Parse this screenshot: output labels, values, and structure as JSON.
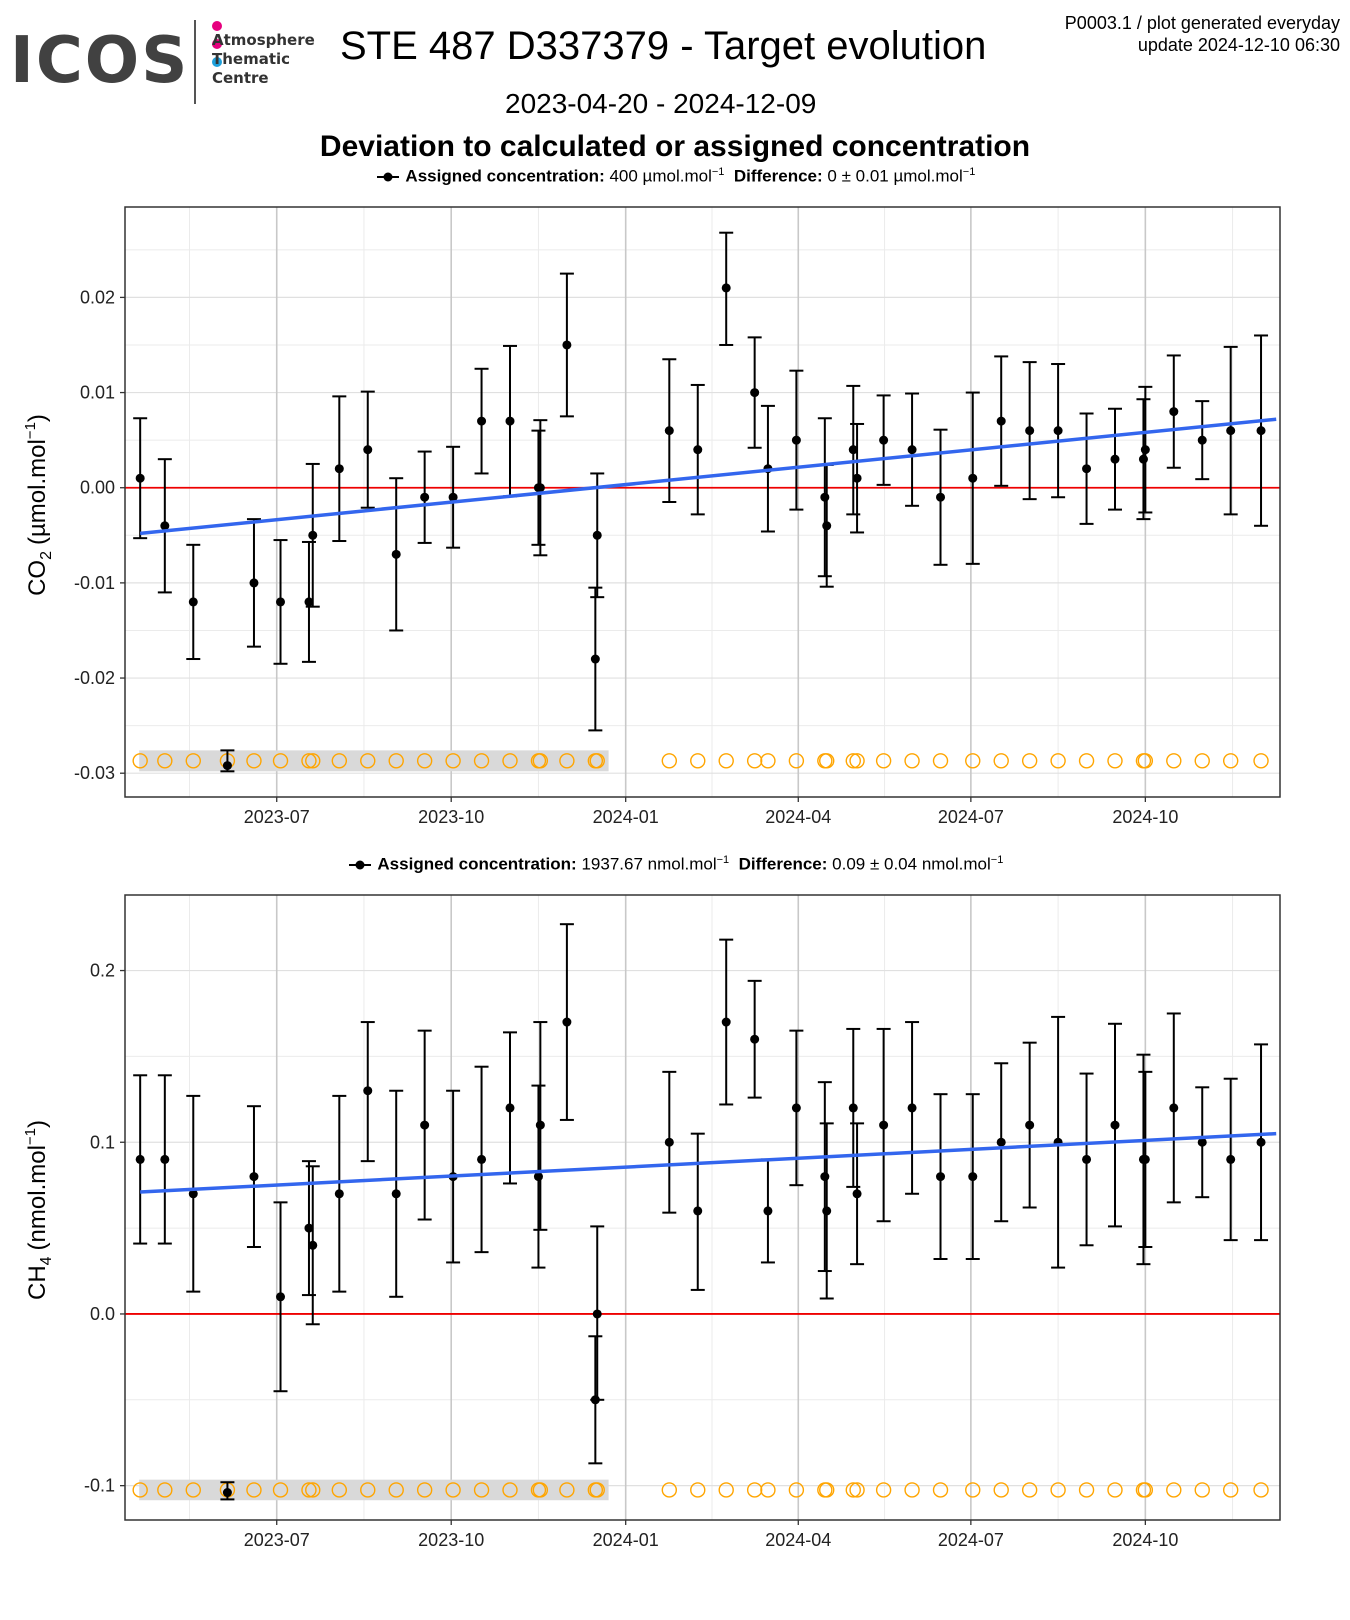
{
  "logo": {
    "wordmark": "ICOS",
    "text_lines": [
      "Atmosphere",
      "Thematic",
      "Centre"
    ],
    "dot_colors": [
      "#e6007e",
      "#e6007e",
      "#1ea0db"
    ]
  },
  "header": {
    "title": "STE 487 D337379 - Target evolution",
    "date_range": "2023-04-20 - 2024-12-09",
    "subtitle": "Deviation to calculated or assigned concentration",
    "meta_line1": "P0003.1 / plot generated everyday",
    "meta_line2": "update  2024-12-10 06:30"
  },
  "colors": {
    "points": "#000000",
    "trend": "#3366ee",
    "zero_line": "#ee0000",
    "markers": "#ffa500",
    "marker_band": "#d9d9d9"
  },
  "chart_data": [
    {
      "type": "scatter",
      "ylabel_main": "CO",
      "ylabel_sub": "2",
      "ylabel_unit": "(µmol.mol",
      "ylabel_sup": "−1",
      "ylabel_close": ")",
      "legend": {
        "label1": "Assigned concentration:",
        "value1": "400 µmol.mol",
        "sup1": "−1",
        "label2": "Difference:",
        "value2": "0 ± 0.01 µmol.mol",
        "sup2": "−1"
      },
      "ylim": [
        -0.0325,
        0.0295
      ],
      "yticks": [
        0.02,
        0.01,
        0.0,
        -0.01,
        -0.02,
        -0.03
      ],
      "ytick_labels": [
        "0.02",
        "0.01",
        "0.00",
        "-0.01",
        "-0.02",
        "-0.03"
      ],
      "xlim": [
        "2023-04-20",
        "2024-12-09"
      ],
      "xticks": [
        "2023-07-01",
        "2023-10-01",
        "2024-01-01",
        "2024-04-01",
        "2024-07-01",
        "2024-10-01"
      ],
      "xtick_labels": [
        "2023-07",
        "2023-10",
        "2024-01",
        "2024-04",
        "2024-07",
        "2024-10"
      ],
      "trend": {
        "x": [
          "2023-04-20",
          "2024-12-09"
        ],
        "y": [
          -0.0048,
          0.0072
        ]
      },
      "marker_y": -0.0287,
      "marker_band": [
        -0.0298,
        -0.0276
      ],
      "points": [
        {
          "x": "2023-04-20",
          "y": 0.001,
          "lo": -0.0053,
          "hi": 0.0073
        },
        {
          "x": "2023-05-03",
          "y": -0.004,
          "lo": -0.011,
          "hi": 0.003
        },
        {
          "x": "2023-05-18",
          "y": -0.012,
          "lo": -0.018,
          "hi": -0.006
        },
        {
          "x": "2023-06-05",
          "y": -0.0292,
          "lo": -0.0298,
          "hi": -0.0276
        },
        {
          "x": "2023-06-19",
          "y": -0.01,
          "lo": -0.0167,
          "hi": -0.0033
        },
        {
          "x": "2023-07-03",
          "y": -0.012,
          "lo": -0.0185,
          "hi": -0.0055
        },
        {
          "x": "2023-07-18",
          "y": -0.012,
          "lo": -0.0183,
          "hi": -0.0057
        },
        {
          "x": "2023-07-20",
          "y": -0.005,
          "lo": -0.0125,
          "hi": 0.0025
        },
        {
          "x": "2023-08-03",
          "y": 0.002,
          "lo": -0.0056,
          "hi": 0.0096
        },
        {
          "x": "2023-08-18",
          "y": 0.004,
          "lo": -0.0021,
          "hi": 0.0101
        },
        {
          "x": "2023-09-02",
          "y": -0.007,
          "lo": -0.015,
          "hi": 0.001
        },
        {
          "x": "2023-09-17",
          "y": -0.001,
          "lo": -0.0058,
          "hi": 0.0038
        },
        {
          "x": "2023-10-02",
          "y": -0.001,
          "lo": -0.0063,
          "hi": 0.0043
        },
        {
          "x": "2023-10-17",
          "y": 0.007,
          "lo": 0.0015,
          "hi": 0.0125
        },
        {
          "x": "2023-11-01",
          "y": 0.007,
          "lo": -0.0009,
          "hi": 0.0149
        },
        {
          "x": "2023-11-16",
          "y": 0.0,
          "lo": -0.006,
          "hi": 0.006
        },
        {
          "x": "2023-11-17",
          "y": 0.0,
          "lo": -0.0071,
          "hi": 0.0071
        },
        {
          "x": "2023-12-01",
          "y": 0.015,
          "lo": 0.0075,
          "hi": 0.0225
        },
        {
          "x": "2023-12-16",
          "y": -0.018,
          "lo": -0.0255,
          "hi": -0.0105
        },
        {
          "x": "2023-12-17",
          "y": -0.005,
          "lo": -0.0115,
          "hi": 0.0015
        },
        {
          "x": "2024-01-24",
          "y": 0.006,
          "lo": -0.0015,
          "hi": 0.0135
        },
        {
          "x": "2024-02-08",
          "y": 0.004,
          "lo": -0.0028,
          "hi": 0.0108
        },
        {
          "x": "2024-02-23",
          "y": 0.021,
          "lo": 0.015,
          "hi": 0.0268
        },
        {
          "x": "2024-03-09",
          "y": 0.01,
          "lo": 0.0042,
          "hi": 0.0158
        },
        {
          "x": "2024-03-16",
          "y": 0.002,
          "lo": -0.0046,
          "hi": 0.0086
        },
        {
          "x": "2024-03-31",
          "y": 0.005,
          "lo": -0.0023,
          "hi": 0.0123
        },
        {
          "x": "2024-04-15",
          "y": -0.001,
          "lo": -0.0093,
          "hi": 0.0073
        },
        {
          "x": "2024-04-16",
          "y": -0.004,
          "lo": -0.0104,
          "hi": 0.0024
        },
        {
          "x": "2024-04-30",
          "y": 0.004,
          "lo": -0.0028,
          "hi": 0.0107
        },
        {
          "x": "2024-05-02",
          "y": 0.001,
          "lo": -0.0047,
          "hi": 0.0067
        },
        {
          "x": "2024-05-16",
          "y": 0.005,
          "lo": 0.0003,
          "hi": 0.0097
        },
        {
          "x": "2024-05-31",
          "y": 0.004,
          "lo": -0.0019,
          "hi": 0.0099
        },
        {
          "x": "2024-06-15",
          "y": -0.001,
          "lo": -0.0081,
          "hi": 0.0061
        },
        {
          "x": "2024-07-02",
          "y": 0.001,
          "lo": -0.008,
          "hi": 0.01
        },
        {
          "x": "2024-07-17",
          "y": 0.007,
          "lo": 0.0002,
          "hi": 0.0138
        },
        {
          "x": "2024-08-01",
          "y": 0.006,
          "lo": -0.0012,
          "hi": 0.0132
        },
        {
          "x": "2024-08-16",
          "y": 0.006,
          "lo": -0.001,
          "hi": 0.013
        },
        {
          "x": "2024-08-31",
          "y": 0.002,
          "lo": -0.0038,
          "hi": 0.0078
        },
        {
          "x": "2024-09-15",
          "y": 0.003,
          "lo": -0.0023,
          "hi": 0.0083
        },
        {
          "x": "2024-09-30",
          "y": 0.003,
          "lo": -0.0033,
          "hi": 0.0093
        },
        {
          "x": "2024-10-01",
          "y": 0.004,
          "lo": -0.0026,
          "hi": 0.0106
        },
        {
          "x": "2024-10-16",
          "y": 0.008,
          "lo": 0.0021,
          "hi": 0.0139
        },
        {
          "x": "2024-10-31",
          "y": 0.005,
          "lo": 0.0009,
          "hi": 0.0091
        },
        {
          "x": "2024-11-15",
          "y": 0.006,
          "lo": -0.0028,
          "hi": 0.0148
        },
        {
          "x": "2024-12-01",
          "y": 0.006,
          "lo": -0.004,
          "hi": 0.016
        }
      ],
      "markers_x": [
        "2023-04-20",
        "2023-05-03",
        "2023-05-18",
        "2023-06-05",
        "2023-06-19",
        "2023-07-03",
        "2023-07-18",
        "2023-07-20",
        "2023-08-03",
        "2023-08-18",
        "2023-09-02",
        "2023-09-17",
        "2023-10-02",
        "2023-10-17",
        "2023-11-01",
        "2023-11-16",
        "2023-11-17",
        "2023-12-01",
        "2023-12-16",
        "2023-12-17",
        "2024-01-24",
        "2024-02-08",
        "2024-02-23",
        "2024-03-09",
        "2024-03-16",
        "2024-03-31",
        "2024-04-15",
        "2024-04-16",
        "2024-04-30",
        "2024-05-02",
        "2024-05-16",
        "2024-05-31",
        "2024-06-15",
        "2024-07-02",
        "2024-07-17",
        "2024-08-01",
        "2024-08-16",
        "2024-08-31",
        "2024-09-15",
        "2024-09-30",
        "2024-10-01",
        "2024-10-16",
        "2024-10-31",
        "2024-11-15",
        "2024-12-01"
      ]
    },
    {
      "type": "scatter",
      "ylabel_main": "CH",
      "ylabel_sub": "4",
      "ylabel_unit": "(nmol.mol",
      "ylabel_sup": "−1",
      "ylabel_close": ")",
      "legend": {
        "label1": "Assigned concentration:",
        "value1": "1937.67 nmol.mol",
        "sup1": "−1",
        "label2": "Difference:",
        "value2": "0.09 ± 0.04 nmol.mol",
        "sup2": "−1"
      },
      "ylim": [
        -0.12,
        0.244
      ],
      "yticks": [
        0.2,
        0.1,
        0.0,
        -0.1
      ],
      "ytick_labels": [
        "0.2",
        "0.1",
        "0.0",
        "-0.1"
      ],
      "xlim": [
        "2023-04-20",
        "2024-12-09"
      ],
      "xticks": [
        "2023-07-01",
        "2023-10-01",
        "2024-01-01",
        "2024-04-01",
        "2024-07-01",
        "2024-10-01"
      ],
      "xtick_labels": [
        "2023-07",
        "2023-10",
        "2024-01",
        "2024-04",
        "2024-07",
        "2024-10"
      ],
      "trend": {
        "x": [
          "2023-04-20",
          "2024-12-09"
        ],
        "y": [
          0.071,
          0.105
        ]
      },
      "marker_y": -0.1025,
      "marker_band": [
        -0.1085,
        -0.0965
      ],
      "points": [
        {
          "x": "2023-04-20",
          "y": 0.09,
          "lo": 0.041,
          "hi": 0.139
        },
        {
          "x": "2023-05-03",
          "y": 0.09,
          "lo": 0.041,
          "hi": 0.139
        },
        {
          "x": "2023-05-18",
          "y": 0.07,
          "lo": 0.013,
          "hi": 0.127
        },
        {
          "x": "2023-06-05",
          "y": -0.104,
          "lo": -0.108,
          "hi": -0.098
        },
        {
          "x": "2023-06-19",
          "y": 0.08,
          "lo": 0.039,
          "hi": 0.121
        },
        {
          "x": "2023-07-03",
          "y": 0.01,
          "lo": -0.045,
          "hi": 0.065
        },
        {
          "x": "2023-07-18",
          "y": 0.05,
          "lo": 0.011,
          "hi": 0.089
        },
        {
          "x": "2023-07-20",
          "y": 0.04,
          "lo": -0.006,
          "hi": 0.086
        },
        {
          "x": "2023-08-03",
          "y": 0.07,
          "lo": 0.013,
          "hi": 0.127
        },
        {
          "x": "2023-08-18",
          "y": 0.13,
          "lo": 0.089,
          "hi": 0.17
        },
        {
          "x": "2023-09-02",
          "y": 0.07,
          "lo": 0.01,
          "hi": 0.13
        },
        {
          "x": "2023-09-17",
          "y": 0.11,
          "lo": 0.055,
          "hi": 0.165
        },
        {
          "x": "2023-10-02",
          "y": 0.08,
          "lo": 0.03,
          "hi": 0.13
        },
        {
          "x": "2023-10-17",
          "y": 0.09,
          "lo": 0.036,
          "hi": 0.144
        },
        {
          "x": "2023-11-01",
          "y": 0.12,
          "lo": 0.076,
          "hi": 0.164
        },
        {
          "x": "2023-11-16",
          "y": 0.08,
          "lo": 0.027,
          "hi": 0.133
        },
        {
          "x": "2023-11-17",
          "y": 0.11,
          "lo": 0.049,
          "hi": 0.17
        },
        {
          "x": "2023-12-01",
          "y": 0.17,
          "lo": 0.113,
          "hi": 0.227
        },
        {
          "x": "2023-12-16",
          "y": -0.05,
          "lo": -0.087,
          "hi": -0.013
        },
        {
          "x": "2023-12-17",
          "y": 0.0,
          "lo": -0.05,
          "hi": 0.051
        },
        {
          "x": "2024-01-24",
          "y": 0.1,
          "lo": 0.059,
          "hi": 0.141
        },
        {
          "x": "2024-02-08",
          "y": 0.06,
          "lo": 0.014,
          "hi": 0.105
        },
        {
          "x": "2024-02-23",
          "y": 0.17,
          "lo": 0.122,
          "hi": 0.218
        },
        {
          "x": "2024-03-09",
          "y": 0.16,
          "lo": 0.126,
          "hi": 0.194
        },
        {
          "x": "2024-03-16",
          "y": 0.06,
          "lo": 0.03,
          "hi": 0.09
        },
        {
          "x": "2024-03-31",
          "y": 0.12,
          "lo": 0.075,
          "hi": 0.165
        },
        {
          "x": "2024-04-15",
          "y": 0.08,
          "lo": 0.025,
          "hi": 0.135
        },
        {
          "x": "2024-04-16",
          "y": 0.06,
          "lo": 0.009,
          "hi": 0.111
        },
        {
          "x": "2024-04-30",
          "y": 0.12,
          "lo": 0.074,
          "hi": 0.166
        },
        {
          "x": "2024-05-02",
          "y": 0.07,
          "lo": 0.029,
          "hi": 0.111
        },
        {
          "x": "2024-05-16",
          "y": 0.11,
          "lo": 0.054,
          "hi": 0.166
        },
        {
          "x": "2024-05-31",
          "y": 0.12,
          "lo": 0.07,
          "hi": 0.17
        },
        {
          "x": "2024-06-15",
          "y": 0.08,
          "lo": 0.032,
          "hi": 0.128
        },
        {
          "x": "2024-07-02",
          "y": 0.08,
          "lo": 0.032,
          "hi": 0.128
        },
        {
          "x": "2024-07-17",
          "y": 0.1,
          "lo": 0.054,
          "hi": 0.146
        },
        {
          "x": "2024-08-01",
          "y": 0.11,
          "lo": 0.062,
          "hi": 0.158
        },
        {
          "x": "2024-08-16",
          "y": 0.1,
          "lo": 0.027,
          "hi": 0.173
        },
        {
          "x": "2024-08-31",
          "y": 0.09,
          "lo": 0.04,
          "hi": 0.14
        },
        {
          "x": "2024-09-15",
          "y": 0.11,
          "lo": 0.051,
          "hi": 0.169
        },
        {
          "x": "2024-09-30",
          "y": 0.09,
          "lo": 0.029,
          "hi": 0.151
        },
        {
          "x": "2024-10-01",
          "y": 0.09,
          "lo": 0.039,
          "hi": 0.141
        },
        {
          "x": "2024-10-16",
          "y": 0.12,
          "lo": 0.065,
          "hi": 0.175
        },
        {
          "x": "2024-10-31",
          "y": 0.1,
          "lo": 0.068,
          "hi": 0.132
        },
        {
          "x": "2024-11-15",
          "y": 0.09,
          "lo": 0.043,
          "hi": 0.137
        },
        {
          "x": "2024-12-01",
          "y": 0.1,
          "lo": 0.043,
          "hi": 0.157
        }
      ],
      "markers_x": [
        "2023-04-20",
        "2023-05-03",
        "2023-05-18",
        "2023-06-05",
        "2023-06-19",
        "2023-07-03",
        "2023-07-18",
        "2023-07-20",
        "2023-08-03",
        "2023-08-18",
        "2023-09-02",
        "2023-09-17",
        "2023-10-02",
        "2023-10-17",
        "2023-11-01",
        "2023-11-16",
        "2023-11-17",
        "2023-12-01",
        "2023-12-16",
        "2023-12-17",
        "2024-01-24",
        "2024-02-08",
        "2024-02-23",
        "2024-03-09",
        "2024-03-16",
        "2024-03-31",
        "2024-04-15",
        "2024-04-16",
        "2024-04-30",
        "2024-05-02",
        "2024-05-16",
        "2024-05-31",
        "2024-06-15",
        "2024-07-02",
        "2024-07-17",
        "2024-08-01",
        "2024-08-16",
        "2024-08-31",
        "2024-09-15",
        "2024-09-30",
        "2024-10-01",
        "2024-10-16",
        "2024-10-31",
        "2024-11-15",
        "2024-12-01"
      ]
    }
  ]
}
